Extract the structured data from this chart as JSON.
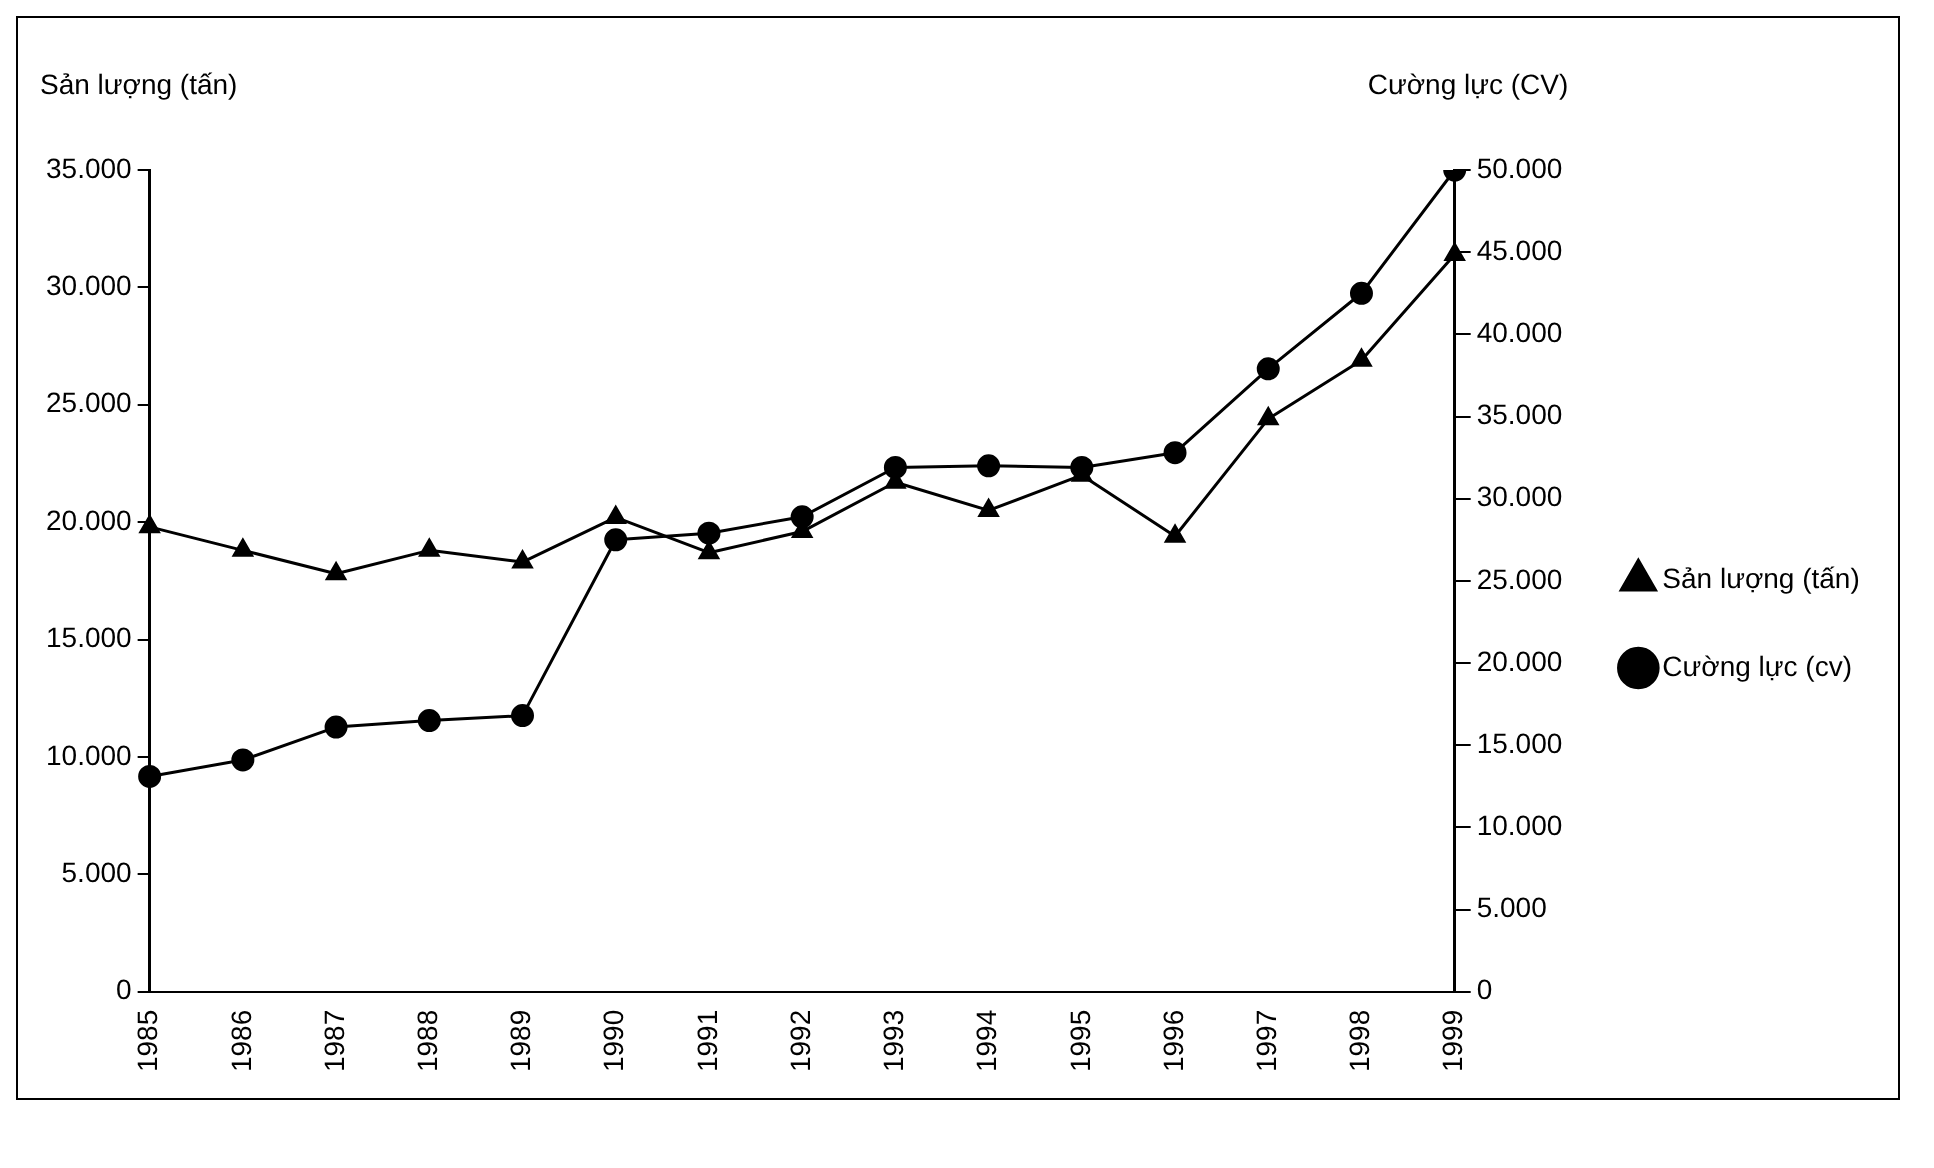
{
  "chart_data": {
    "type": "line",
    "ylabel": "Sản lượng (tấn)",
    "y2label": "Cường lực (CV)",
    "categories": [
      "1985",
      "1986",
      "1987",
      "1988",
      "1989",
      "1990",
      "1991",
      "1992",
      "1993",
      "1994",
      "1995",
      "1996",
      "1997",
      "1998",
      "1999"
    ],
    "series": [
      {
        "name": "Sản lượng (tấn)",
        "color": "#000000",
        "marker": "triangle",
        "values": [
          19800,
          18800,
          17800,
          18800,
          18300,
          20200,
          18700,
          19600,
          21700,
          20500,
          22000,
          19400,
          24400,
          26900,
          31400
        ]
      },
      {
        "name": "Cường lực (cv)",
        "color": "#000000",
        "marker": "circle",
        "axis": "y2",
        "values": [
          13100,
          14100,
          16100,
          16500,
          16800,
          27500,
          27900,
          28900,
          31900,
          32000,
          31900,
          32800,
          37900,
          42500,
          50000
        ]
      }
    ],
    "ylim": [
      0,
      35000
    ],
    "yticks": [
      {
        "value": 0,
        "label": "0"
      },
      {
        "value": 5000,
        "label": "5.000"
      },
      {
        "value": 10000,
        "label": "10.000"
      },
      {
        "value": 15000,
        "label": "15.000"
      },
      {
        "value": 20000,
        "label": "20.000"
      },
      {
        "value": 25000,
        "label": "25.000"
      },
      {
        "value": 30000,
        "label": "30.000"
      },
      {
        "value": 35000,
        "label": "35.000"
      }
    ],
    "y2lim": [
      0,
      50000
    ],
    "y2ticks": [
      {
        "value": 0,
        "label": "0"
      },
      {
        "value": 5000,
        "label": "5.000"
      },
      {
        "value": 10000,
        "label": "10.000"
      },
      {
        "value": 15000,
        "label": "15.000"
      },
      {
        "value": 20000,
        "label": "20.000"
      },
      {
        "value": 25000,
        "label": "25.000"
      },
      {
        "value": 30000,
        "label": "30.000"
      },
      {
        "value": 35000,
        "label": "35.000"
      },
      {
        "value": 40000,
        "label": "40.000"
      },
      {
        "value": 45000,
        "label": "45.000"
      },
      {
        "value": 50000,
        "label": "50.000"
      }
    ],
    "grid": false,
    "legend": "right",
    "line_style": "solid"
  }
}
